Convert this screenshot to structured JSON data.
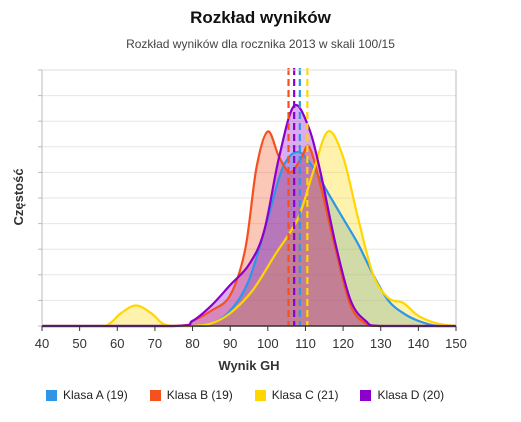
{
  "chart_data": {
    "type": "area",
    "title": "Rozkład wyników",
    "subtitle": "Rozkład wyników dla rocznika 2013 w skali 100/15",
    "xlabel": "Wynik GH",
    "ylabel": "Częstość",
    "xlim": [
      40,
      150
    ],
    "x_ticks": [
      40,
      50,
      60,
      70,
      80,
      90,
      100,
      110,
      120,
      130,
      140,
      150
    ],
    "ylim": [
      0,
      1
    ],
    "grid": true,
    "legend_position": "bottom",
    "series": [
      {
        "name": "Klasa A (19)",
        "color": "#2e96e8",
        "mean": 108.5,
        "curve": [
          [
            40,
            0
          ],
          [
            80,
            0
          ],
          [
            85,
            0.01
          ],
          [
            90,
            0.06
          ],
          [
            95,
            0.18
          ],
          [
            100,
            0.42
          ],
          [
            104,
            0.62
          ],
          [
            108,
            0.68
          ],
          [
            112,
            0.62
          ],
          [
            116,
            0.52
          ],
          [
            120,
            0.42
          ],
          [
            124,
            0.32
          ],
          [
            128,
            0.2
          ],
          [
            132,
            0.1
          ],
          [
            136,
            0.05
          ],
          [
            140,
            0.02
          ],
          [
            145,
            0
          ],
          [
            150,
            0
          ]
        ]
      },
      {
        "name": "Klasa B (19)",
        "color": "#f4511e",
        "mean": 105.5,
        "curve": [
          [
            40,
            0
          ],
          [
            75,
            0
          ],
          [
            80,
            0.02
          ],
          [
            85,
            0.06
          ],
          [
            90,
            0.12
          ],
          [
            94,
            0.3
          ],
          [
            97,
            0.62
          ],
          [
            100,
            0.76
          ],
          [
            103,
            0.66
          ],
          [
            106,
            0.6
          ],
          [
            109,
            0.66
          ],
          [
            111,
            0.7
          ],
          [
            114,
            0.55
          ],
          [
            118,
            0.3
          ],
          [
            122,
            0.08
          ],
          [
            126,
            0.01
          ],
          [
            130,
            0
          ],
          [
            150,
            0
          ]
        ]
      },
      {
        "name": "Klasa C (21)",
        "color": "#ffd600",
        "mean": 110.5,
        "curve": [
          [
            40,
            0
          ],
          [
            55,
            0
          ],
          [
            58,
            0.01
          ],
          [
            61,
            0.05
          ],
          [
            65,
            0.08
          ],
          [
            69,
            0.05
          ],
          [
            72,
            0.01
          ],
          [
            75,
            0
          ],
          [
            80,
            0
          ],
          [
            85,
            0.01
          ],
          [
            90,
            0.05
          ],
          [
            96,
            0.14
          ],
          [
            102,
            0.28
          ],
          [
            108,
            0.42
          ],
          [
            112,
            0.6
          ],
          [
            116,
            0.76
          ],
          [
            120,
            0.66
          ],
          [
            124,
            0.42
          ],
          [
            128,
            0.2
          ],
          [
            132,
            0.11
          ],
          [
            136,
            0.09
          ],
          [
            140,
            0.04
          ],
          [
            145,
            0.01
          ],
          [
            150,
            0
          ]
        ]
      },
      {
        "name": "Klasa D (20)",
        "color": "#8b00cc",
        "mean": 107.0,
        "curve": [
          [
            40,
            0
          ],
          [
            75,
            0
          ],
          [
            80,
            0.02
          ],
          [
            85,
            0.08
          ],
          [
            90,
            0.16
          ],
          [
            95,
            0.24
          ],
          [
            99,
            0.37
          ],
          [
            103,
            0.66
          ],
          [
            107,
            0.86
          ],
          [
            111,
            0.77
          ],
          [
            114,
            0.6
          ],
          [
            118,
            0.32
          ],
          [
            122,
            0.1
          ],
          [
            126,
            0.02
          ],
          [
            130,
            0
          ],
          [
            150,
            0
          ]
        ]
      }
    ]
  }
}
